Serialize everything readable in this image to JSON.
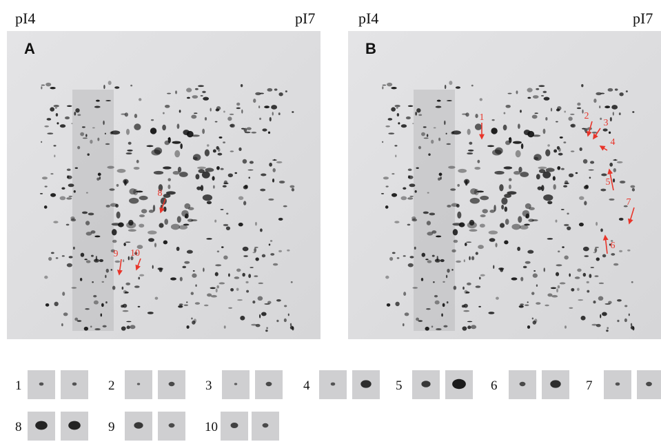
{
  "panels": [
    {
      "letter": "A",
      "left": "pI4",
      "right": "pI7",
      "arrows": [
        {
          "label": "8"
        },
        {
          "label": "9"
        },
        {
          "label": "10"
        }
      ]
    },
    {
      "letter": "B",
      "left": "pI4",
      "right": "pI7",
      "arrows": [
        {
          "label": "1"
        },
        {
          "label": "2"
        },
        {
          "label": "3"
        },
        {
          "label": "4"
        },
        {
          "label": "5"
        },
        {
          "label": "6"
        },
        {
          "label": "7"
        }
      ]
    }
  ],
  "insets": [
    {
      "label": "1"
    },
    {
      "label": "2"
    },
    {
      "label": "3"
    },
    {
      "label": "4"
    },
    {
      "label": "5"
    },
    {
      "label": "6"
    },
    {
      "label": "7"
    },
    {
      "label": "8"
    },
    {
      "label": "9"
    },
    {
      "label": "10"
    }
  ]
}
